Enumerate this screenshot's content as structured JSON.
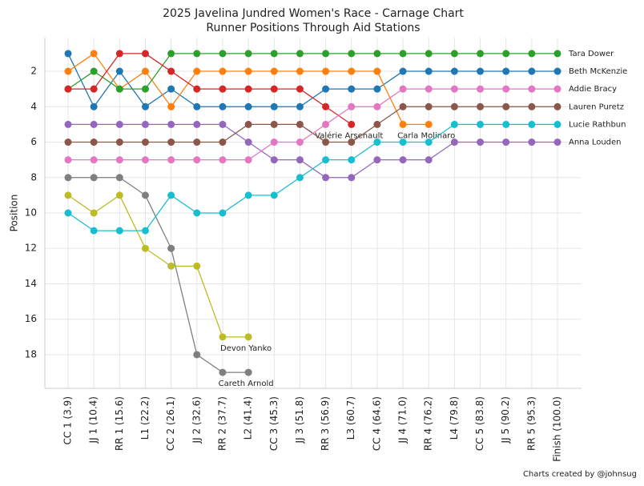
{
  "chart_data": {
    "type": "line",
    "title": "2025 Javelina Jundred Women's Race - Carnage Chart",
    "subtitle": "Runner Positions Through Aid Stations",
    "y_label": "Position",
    "footer": "Charts created by @johnsug",
    "categories": [
      "CC 1 (3.9)",
      "JJ 1 (10.4)",
      "RR 1 (15.6)",
      "L1 (22.2)",
      "CC 2 (26.1)",
      "JJ 2 (32.6)",
      "RR 2 (37.7)",
      "L2 (41.4)",
      "CC 3 (45.3)",
      "JJ 3 (51.8)",
      "RR 3 (56.9)",
      "L3 (60.7)",
      "CC 4 (64.6)",
      "JJ 4 (71.0)",
      "RR 4 (76.2)",
      "L4 (79.8)",
      "CC 5 (83.8)",
      "JJ 5 (90.2)",
      "RR 5 (95.3)",
      "Finish (100.0)"
    ],
    "ylim": [
      0.1,
      19.9
    ],
    "invert_y": true,
    "yticks": [
      2,
      4,
      6,
      8,
      10,
      12,
      14,
      16,
      18
    ],
    "grid": true,
    "series": [
      {
        "name": "Beth McKenzie",
        "color": "#1f77b4",
        "values": [
          1,
          4,
          2,
          4,
          3,
          4,
          4,
          4,
          4,
          4,
          3,
          3,
          3,
          2,
          2,
          2,
          2,
          2,
          2,
          2
        ]
      },
      {
        "name": "Carla Molinaro",
        "color": "#ff7f0e",
        "values": [
          2,
          1,
          3,
          2,
          4,
          2,
          2,
          2,
          2,
          2,
          2,
          2,
          2,
          5,
          5,
          null,
          null,
          null,
          null,
          null
        ]
      },
      {
        "name": "Tara Dower",
        "color": "#2ca02c",
        "values": [
          3,
          2,
          3,
          3,
          1,
          1,
          1,
          1,
          1,
          1,
          1,
          1,
          1,
          1,
          1,
          1,
          1,
          1,
          1,
          1
        ]
      },
      {
        "name": "Valérie Arsenault",
        "color": "#d62728",
        "values": [
          3,
          3,
          1,
          1,
          2,
          3,
          3,
          3,
          3,
          3,
          4,
          5,
          null,
          null,
          null,
          null,
          null,
          null,
          null,
          null
        ]
      },
      {
        "name": "Anna Louden",
        "color": "#9467bd",
        "values": [
          5,
          5,
          5,
          5,
          5,
          5,
          5,
          6,
          7,
          7,
          8,
          8,
          7,
          7,
          7,
          6,
          6,
          6,
          6,
          6
        ]
      },
      {
        "name": "Lauren Puretz",
        "color": "#8c564b",
        "values": [
          6,
          6,
          6,
          6,
          6,
          6,
          6,
          5,
          5,
          5,
          6,
          6,
          5,
          4,
          4,
          4,
          4,
          4,
          4,
          4
        ]
      },
      {
        "name": "Addie Bracy",
        "color": "#e377c2",
        "values": [
          7,
          7,
          7,
          7,
          7,
          7,
          7,
          7,
          6,
          6,
          5,
          4,
          4,
          3,
          3,
          3,
          3,
          3,
          3,
          3
        ]
      },
      {
        "name": "Careth Arnold",
        "color": "#7f7f7f",
        "values": [
          8,
          8,
          8,
          9,
          12,
          18,
          19,
          19,
          null,
          null,
          null,
          null,
          null,
          null,
          null,
          null,
          null,
          null,
          null,
          null
        ]
      },
      {
        "name": "Devon Yanko",
        "color": "#bcbd22",
        "values": [
          9,
          10,
          9,
          12,
          13,
          13,
          17,
          17,
          null,
          null,
          null,
          null,
          null,
          null,
          null,
          null,
          null,
          null,
          null,
          null
        ]
      },
      {
        "name": "Lucie Rathbun",
        "color": "#17becf",
        "values": [
          10,
          11,
          11,
          11,
          9,
          10,
          10,
          9,
          9,
          8,
          7,
          7,
          6,
          6,
          6,
          5,
          5,
          5,
          5,
          5
        ]
      }
    ]
  }
}
